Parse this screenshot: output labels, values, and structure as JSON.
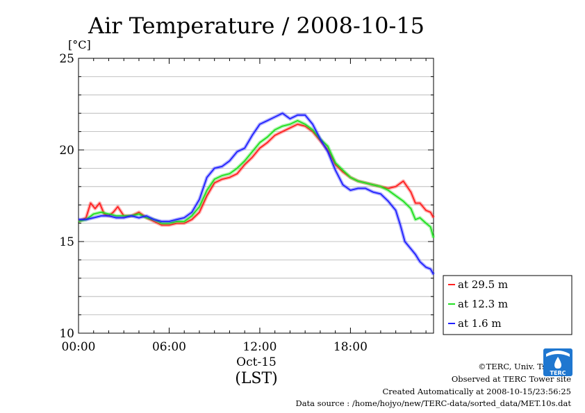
{
  "chart_data": {
    "type": "line",
    "title": "Air Temperature / 2008-10-15",
    "ylabel": "[°C]",
    "xlabel": "(LST)",
    "date_label": "Oct-15",
    "x_unit": "hour",
    "xlim": [
      0,
      23.5
    ],
    "ylim": [
      10,
      25
    ],
    "x_ticks": [
      {
        "value": 0,
        "label": "00:00"
      },
      {
        "value": 6,
        "label": "06:00"
      },
      {
        "value": 12,
        "label": "12:00"
      },
      {
        "value": 18,
        "label": "18:00"
      }
    ],
    "y_ticks": [
      {
        "value": 10,
        "label": "10"
      },
      {
        "value": 15,
        "label": "15"
      },
      {
        "value": 20,
        "label": "20"
      },
      {
        "value": 25,
        "label": "25"
      }
    ],
    "grid": true,
    "legend_position": "right",
    "series": [
      {
        "name": "at 29.5 m",
        "color": "#ff2020",
        "x": [
          0,
          0.5,
          0.8,
          1.1,
          1.4,
          1.7,
          2.0,
          2.3,
          2.6,
          3.0,
          3.5,
          4.0,
          4.5,
          5.0,
          5.5,
          6.0,
          6.5,
          7.0,
          7.5,
          8.0,
          8.5,
          9.0,
          9.5,
          10.0,
          10.5,
          11.0,
          11.5,
          12.0,
          12.5,
          13.0,
          13.5,
          14.0,
          14.5,
          15.0,
          15.5,
          16.0,
          16.5,
          17.0,
          17.5,
          18.0,
          18.5,
          19.0,
          19.5,
          20.0,
          20.5,
          21.0,
          21.5,
          22.0,
          22.3,
          22.6,
          23.0,
          23.3,
          23.5
        ],
        "values": [
          16.1,
          16.3,
          17.1,
          16.8,
          17.1,
          16.5,
          16.4,
          16.6,
          16.9,
          16.4,
          16.4,
          16.6,
          16.3,
          16.1,
          15.9,
          15.9,
          16.0,
          16.0,
          16.2,
          16.6,
          17.5,
          18.2,
          18.4,
          18.5,
          18.7,
          19.2,
          19.6,
          20.1,
          20.4,
          20.8,
          21.0,
          21.2,
          21.4,
          21.3,
          21.0,
          20.5,
          20.0,
          19.2,
          18.8,
          18.5,
          18.3,
          18.2,
          18.1,
          18.0,
          17.9,
          18.0,
          18.3,
          17.7,
          17.1,
          17.1,
          16.7,
          16.6,
          16.3
        ]
      },
      {
        "name": "at 12.3 m",
        "color": "#20e020",
        "x": [
          0,
          0.5,
          1.0,
          1.5,
          2.0,
          2.5,
          3.0,
          3.5,
          4.0,
          4.5,
          5.0,
          5.5,
          6.0,
          6.5,
          7.0,
          7.5,
          8.0,
          8.5,
          9.0,
          9.5,
          10.0,
          10.5,
          11.0,
          11.5,
          12.0,
          12.5,
          13.0,
          13.5,
          14.0,
          14.5,
          15.0,
          15.5,
          16.0,
          16.5,
          17.0,
          17.5,
          18.0,
          18.5,
          19.0,
          19.5,
          20.0,
          20.5,
          21.0,
          21.5,
          22.0,
          22.3,
          22.6,
          23.0,
          23.3,
          23.5
        ],
        "values": [
          16.1,
          16.2,
          16.5,
          16.6,
          16.5,
          16.4,
          16.4,
          16.4,
          16.5,
          16.3,
          16.2,
          16.0,
          16.0,
          16.1,
          16.1,
          16.4,
          16.9,
          17.8,
          18.4,
          18.6,
          18.7,
          19.0,
          19.4,
          19.9,
          20.4,
          20.7,
          21.1,
          21.3,
          21.4,
          21.6,
          21.4,
          21.1,
          20.6,
          20.2,
          19.3,
          18.9,
          18.5,
          18.3,
          18.2,
          18.1,
          18.0,
          17.8,
          17.5,
          17.2,
          16.8,
          16.2,
          16.3,
          16.0,
          15.8,
          15.2
        ]
      },
      {
        "name": "at 1.6 m",
        "color": "#2020ff",
        "x": [
          0,
          0.5,
          1.0,
          1.5,
          2.0,
          2.5,
          3.0,
          3.5,
          4.0,
          4.5,
          5.0,
          5.5,
          6.0,
          6.5,
          7.0,
          7.5,
          8.0,
          8.5,
          9.0,
          9.5,
          10.0,
          10.5,
          11.0,
          11.5,
          12.0,
          12.5,
          13.0,
          13.5,
          14.0,
          14.5,
          15.0,
          15.5,
          16.0,
          16.5,
          17.0,
          17.5,
          18.0,
          18.5,
          19.0,
          19.5,
          20.0,
          20.5,
          21.0,
          21.3,
          21.6,
          22.0,
          22.3,
          22.6,
          23.0,
          23.3,
          23.5
        ],
        "values": [
          16.2,
          16.2,
          16.3,
          16.4,
          16.4,
          16.3,
          16.3,
          16.4,
          16.3,
          16.4,
          16.2,
          16.1,
          16.1,
          16.2,
          16.3,
          16.6,
          17.3,
          18.5,
          19.0,
          19.1,
          19.4,
          19.9,
          20.1,
          20.8,
          21.4,
          21.6,
          21.8,
          22.0,
          21.7,
          21.9,
          21.9,
          21.4,
          20.6,
          19.9,
          18.9,
          18.1,
          17.8,
          17.9,
          17.9,
          17.7,
          17.6,
          17.2,
          16.7,
          15.9,
          15.0,
          14.6,
          14.3,
          13.9,
          13.6,
          13.5,
          13.2
        ]
      }
    ]
  },
  "footer": {
    "copyright": "©TERC, Univ. Tsukuba",
    "observed": "Observed at TERC Tower site",
    "created": "Created Automatically at 2008-10-15/23:56:25",
    "source": "Data source : /home/hojyo/new/TERC-data/sorted_data/MET.10s.dat"
  },
  "logo": {
    "text": "TERC",
    "color": "#1f77d0"
  }
}
